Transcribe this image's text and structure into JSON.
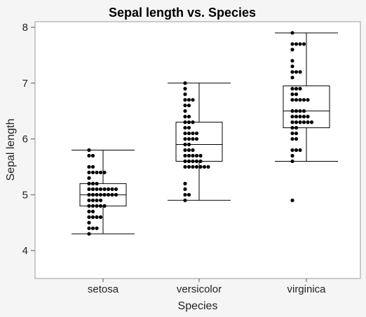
{
  "chart_data": {
    "type": "box",
    "title": "Sepal length vs. Species",
    "xlabel": "Species",
    "ylabel": "Sepal length",
    "ylim": [
      3.5,
      8.1
    ],
    "yticks": [
      4,
      5,
      6,
      7,
      8
    ],
    "categories": [
      "setosa",
      "versicolor",
      "virginica"
    ],
    "boxes": [
      {
        "category": "setosa",
        "whisker_low": 4.3,
        "q1": 4.8,
        "median": 5.0,
        "q3": 5.2,
        "whisker_high": 5.8,
        "outliers": []
      },
      {
        "category": "versicolor",
        "whisker_low": 4.9,
        "q1": 5.6,
        "median": 5.9,
        "q3": 6.3,
        "whisker_high": 7.0,
        "outliers": []
      },
      {
        "category": "virginica",
        "whisker_low": 5.6,
        "q1": 6.2,
        "median": 6.5,
        "q3": 6.95,
        "whisker_high": 7.9,
        "outliers": [
          4.9
        ]
      }
    ],
    "points": [
      {
        "category": "setosa",
        "values": [
          4.3,
          4.4,
          4.4,
          4.4,
          4.5,
          4.6,
          4.6,
          4.6,
          4.6,
          4.7,
          4.7,
          4.8,
          4.8,
          4.8,
          4.8,
          4.8,
          4.9,
          4.9,
          4.9,
          4.9,
          5.0,
          5.0,
          5.0,
          5.0,
          5.0,
          5.0,
          5.0,
          5.0,
          5.1,
          5.1,
          5.1,
          5.1,
          5.1,
          5.1,
          5.1,
          5.1,
          5.2,
          5.2,
          5.2,
          5.3,
          5.4,
          5.4,
          5.4,
          5.4,
          5.4,
          5.5,
          5.5,
          5.7,
          5.7,
          5.8
        ]
      },
      {
        "category": "versicolor",
        "values": [
          4.9,
          5.0,
          5.0,
          5.1,
          5.2,
          5.5,
          5.5,
          5.5,
          5.5,
          5.5,
          5.5,
          5.5,
          5.6,
          5.6,
          5.6,
          5.6,
          5.6,
          5.7,
          5.7,
          5.7,
          5.7,
          5.7,
          5.8,
          5.8,
          5.8,
          5.9,
          5.9,
          6.0,
          6.0,
          6.0,
          6.0,
          6.1,
          6.1,
          6.1,
          6.1,
          6.2,
          6.2,
          6.3,
          6.3,
          6.3,
          6.4,
          6.4,
          6.5,
          6.6,
          6.6,
          6.7,
          6.7,
          6.7,
          6.8,
          6.9,
          7.0
        ]
      },
      {
        "category": "virginica",
        "values": [
          4.9,
          5.6,
          5.7,
          5.8,
          5.8,
          5.8,
          6.0,
          6.0,
          6.1,
          6.1,
          6.2,
          6.2,
          6.3,
          6.3,
          6.3,
          6.3,
          6.3,
          6.3,
          6.4,
          6.4,
          6.4,
          6.4,
          6.4,
          6.5,
          6.5,
          6.5,
          6.5,
          6.7,
          6.7,
          6.7,
          6.7,
          6.7,
          6.8,
          6.8,
          6.9,
          6.9,
          6.9,
          7.1,
          7.2,
          7.2,
          7.2,
          7.3,
          7.4,
          7.6,
          7.7,
          7.7,
          7.7,
          7.7,
          7.9
        ]
      }
    ]
  }
}
